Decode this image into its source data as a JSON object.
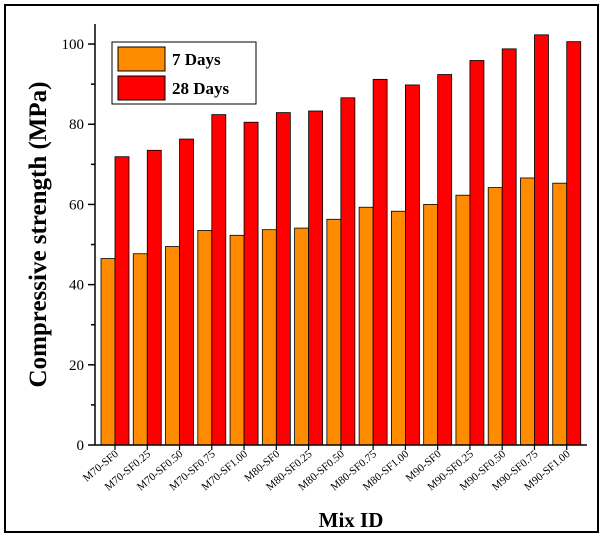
{
  "chart_data": {
    "type": "bar",
    "xlabel": "Mix ID",
    "ylabel": "Compressive strength (MPa)",
    "ylim": [
      0,
      105
    ],
    "yticks": [
      0,
      20,
      40,
      60,
      80,
      100
    ],
    "categories": [
      "M70-SF0",
      "M70-SF0.25",
      "M70-SF0.50",
      "M70-SF0.75",
      "M70-SF1.00",
      "M80-SF0",
      "M80-SF0.25",
      "M80-SF0.50",
      "M80-SF0.75",
      "M80-SF1.00",
      "M90-SF0",
      "M90-SF0.25",
      "M90-SF0.50",
      "M90-SF0.75",
      "M90-SF1.00"
    ],
    "series": [
      {
        "name": "7 Days",
        "color": "#ff8c00",
        "values": [
          46.5,
          47.7,
          49.5,
          53.5,
          52.3,
          53.7,
          54.1,
          56.3,
          59.3,
          58.3,
          60.0,
          62.3,
          64.2,
          66.6,
          65.3
        ]
      },
      {
        "name": "28 Days",
        "color": "#ff0000",
        "values": [
          71.9,
          73.5,
          76.3,
          82.4,
          80.5,
          82.9,
          83.3,
          86.6,
          91.2,
          89.8,
          92.4,
          95.9,
          98.8,
          102.3,
          100.6
        ]
      }
    ],
    "legend_position": "top-left"
  }
}
